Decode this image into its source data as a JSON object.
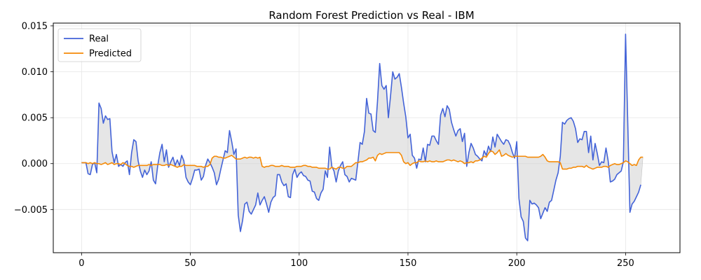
{
  "chart_data": {
    "type": "line",
    "title": "Random Forest Prediction vs Real - IBM",
    "xlabel": "",
    "ylabel": "",
    "xlim": [
      -13,
      275
    ],
    "ylim": [
      -0.0097,
      0.0153
    ],
    "xticks": [
      0,
      50,
      100,
      150,
      200,
      250
    ],
    "xtick_labels": [
      "0",
      "50",
      "100",
      "150",
      "200",
      "250"
    ],
    "yticks": [
      -0.005,
      0.0,
      0.005,
      0.01,
      0.015
    ],
    "ytick_labels": [
      "−0.005",
      "0.000",
      "0.005",
      "0.010",
      "0.015"
    ],
    "grid": true,
    "legend_position": "top-left",
    "fill_between": true,
    "colors": {
      "real": "#4363d8",
      "predicted": "#f58a07",
      "fill": "#c8c8c8"
    },
    "series": [
      {
        "name": "Real",
        "values": [
          0.0001,
          0.0001,
          0.0001,
          -0.0011,
          -0.0012,
          -0.0001,
          0.0001,
          -0.001,
          0.0066,
          0.006,
          0.0044,
          0.0052,
          0.0048,
          0.0049,
          0.0013,
          0.0001,
          0.001,
          -0.0003,
          -0.0001,
          -0.0003,
          0.0001,
          0.0003,
          -0.0012,
          0.0012,
          0.0026,
          0.0024,
          0.0003,
          -0.0008,
          -0.0015,
          -0.0007,
          -0.0012,
          -0.0008,
          0.0002,
          -0.0018,
          -0.0022,
          -0.0002,
          0.0012,
          0.0021,
          0.0002,
          0.0015,
          -0.0004,
          0.0002,
          0.0007,
          -0.0002,
          0.0004,
          -0.0002,
          0.0009,
          0.0003,
          -0.0015,
          -0.002,
          -0.0023,
          -0.0016,
          -0.0007,
          -0.0007,
          -0.0006,
          -0.0018,
          -0.0014,
          -0.0002,
          0.0005,
          0.0001,
          -0.0004,
          -0.001,
          -0.0023,
          -0.0017,
          -0.0006,
          0.0004,
          0.0014,
          0.0012,
          0.0036,
          0.0024,
          0.001,
          0.0016,
          -0.0056,
          -0.0074,
          -0.0062,
          -0.0044,
          -0.0042,
          -0.0052,
          -0.0055,
          -0.005,
          -0.0045,
          -0.0032,
          -0.0045,
          -0.004,
          -0.0036,
          -0.0044,
          -0.0053,
          -0.0042,
          -0.0037,
          -0.0035,
          -0.0012,
          -0.0012,
          -0.002,
          -0.0024,
          -0.0022,
          -0.0036,
          -0.0037,
          -0.0012,
          -0.0006,
          -0.0015,
          -0.0011,
          -0.0009,
          -0.0013,
          -0.0014,
          -0.0018,
          -0.0019,
          -0.003,
          -0.0031,
          -0.0038,
          -0.004,
          -0.0032,
          -0.0028,
          -0.0008,
          -0.0015,
          0.0018,
          -0.0003,
          -0.0008,
          -0.002,
          -0.0008,
          -0.0002,
          0.0002,
          -0.0012,
          -0.0014,
          -0.002,
          -0.0016,
          -0.0017,
          -0.0018,
          0.0002,
          0.0023,
          0.0021,
          0.0035,
          0.0071,
          0.0055,
          0.0054,
          0.0036,
          0.0034,
          0.0068,
          0.0109,
          0.0085,
          0.0081,
          0.0085,
          0.005,
          0.0074,
          0.01,
          0.0092,
          0.0094,
          0.0098,
          0.0083,
          0.0066,
          0.0051,
          0.0028,
          0.0032,
          0.0009,
          0.0006,
          -0.0005,
          0.0005,
          0.0004,
          0.0017,
          0.0002,
          0.0021,
          0.002,
          0.003,
          0.003,
          0.0025,
          0.0021,
          0.0053,
          0.006,
          0.0051,
          0.0063,
          0.0059,
          0.0045,
          0.0037,
          0.003,
          0.0036,
          0.0038,
          0.0024,
          0.0033,
          -0.0003,
          0.0012,
          0.0022,
          0.0017,
          0.001,
          0.0008,
          0.0005,
          0.0003,
          0.0014,
          0.0009,
          0.0019,
          0.0013,
          0.0029,
          0.0018,
          0.0032,
          0.0028,
          0.0024,
          0.0021,
          0.0026,
          0.0025,
          0.002,
          0.0012,
          0.0006,
          0.0024,
          -0.0038,
          -0.0058,
          -0.0063,
          -0.0081,
          -0.0084,
          -0.004,
          -0.0044,
          -0.0043,
          -0.0045,
          -0.0048,
          -0.006,
          -0.0054,
          -0.0048,
          -0.0052,
          -0.0042,
          -0.004,
          -0.0029,
          -0.0018,
          -0.001,
          0.0008,
          0.0045,
          0.0043,
          0.0047,
          0.0049,
          0.005,
          0.0046,
          0.0038,
          0.0023,
          0.0027,
          0.0026,
          0.0035,
          0.0035,
          0.0012,
          0.003,
          0.0004,
          0.0022,
          0.0011,
          -0.0002,
          0.0002,
          0.0001,
          0.0017,
          0.0003,
          -0.002,
          -0.0019,
          -0.0017,
          -0.0012,
          -0.001,
          -0.0008,
          0.0002,
          0.0141,
          0.0045,
          -0.0053,
          -0.0044,
          -0.0041,
          -0.0036,
          -0.0031,
          -0.0023
        ]
      },
      {
        "name": "Predicted",
        "values": [
          0.0001,
          0.0001,
          0.0001,
          0.0,
          0.0001,
          0.0,
          0.0001,
          0.0,
          0.0,
          -0.0001,
          0.0,
          0.0001,
          -0.0001,
          0.0,
          0.0001,
          -0.0001,
          0.0,
          0.0,
          -0.0001,
          0.0001,
          0.0,
          -0.0002,
          -0.0003,
          -0.0003,
          -0.0004,
          -0.0003,
          -0.0002,
          -0.0002,
          -0.0002,
          -0.0002,
          -0.0002,
          -0.0001,
          -0.0002,
          -0.0001,
          -0.0001,
          -0.0001,
          -0.0001,
          -0.0002,
          -0.0002,
          -0.0001,
          -0.0002,
          -0.0001,
          -0.0002,
          -0.0003,
          -0.0004,
          -0.0003,
          -0.0003,
          -0.0001,
          -0.0002,
          -0.0002,
          -0.0002,
          -0.0002,
          -0.0002,
          -0.0003,
          -0.0003,
          -0.0003,
          -0.0004,
          -0.0003,
          -0.0003,
          -0.0001,
          0.0006,
          0.0008,
          0.0008,
          0.0007,
          0.0007,
          0.0006,
          0.0006,
          0.0007,
          0.0008,
          0.0009,
          0.0007,
          0.0005,
          0.0005,
          0.0005,
          0.0006,
          0.0007,
          0.0006,
          0.0007,
          0.0007,
          0.0006,
          0.0007,
          0.0006,
          0.0007,
          -0.0003,
          -0.0004,
          -0.0003,
          -0.0003,
          -0.0002,
          -0.0002,
          -0.0003,
          -0.0003,
          -0.0003,
          -0.0002,
          -0.0003,
          -0.0003,
          -0.0003,
          -0.0004,
          -0.0004,
          -0.0004,
          -0.0003,
          -0.0003,
          -0.0003,
          -0.0002,
          -0.0002,
          -0.0003,
          -0.0003,
          -0.0004,
          -0.0004,
          -0.0004,
          -0.0005,
          -0.0005,
          -0.0005,
          -0.0005,
          -0.0006,
          -0.0006,
          -0.0004,
          -0.0005,
          -0.0006,
          -0.0004,
          -0.0004,
          -0.0005,
          -0.0005,
          -0.0003,
          -0.0003,
          -0.0003,
          -0.0001,
          0.0001,
          0.0001,
          0.0002,
          0.0002,
          0.0003,
          0.0004,
          0.0006,
          0.0006,
          0.0007,
          0.0003,
          0.0009,
          0.0011,
          0.001,
          0.0011,
          0.0012,
          0.0012,
          0.0012,
          0.0012,
          0.0012,
          0.0012,
          0.0012,
          0.0009,
          0.0002,
          0.0,
          0.0001,
          -0.0002,
          0.0,
          0.0001,
          0.0001,
          0.0003,
          0.0002,
          0.0002,
          0.0003,
          0.0002,
          0.0003,
          0.0002,
          0.0002,
          0.0003,
          0.0002,
          0.0002,
          0.0002,
          0.0003,
          0.0004,
          0.0004,
          0.0003,
          0.0004,
          0.0003,
          0.0002,
          0.0003,
          0.0002,
          0.0,
          0.0001,
          0.0001,
          0.0002,
          0.0001,
          0.0003,
          0.0003,
          0.0004,
          0.0006,
          0.0008,
          0.0007,
          0.0011,
          0.0014,
          0.0013,
          0.001,
          0.0012,
          0.0015,
          0.0008,
          0.0009,
          0.0011,
          0.0009,
          0.0008,
          0.0007,
          0.0008,
          0.0008,
          0.0008,
          0.0008,
          0.0008,
          0.0008,
          0.0007,
          0.0007,
          0.0007,
          0.0007,
          0.0007,
          0.0007,
          0.0008,
          0.001,
          0.0007,
          0.0003,
          0.0002,
          0.0002,
          0.0002,
          0.0002,
          0.0002,
          0.0001,
          -0.0006,
          -0.0006,
          -0.0006,
          -0.0005,
          -0.0005,
          -0.0004,
          -0.0004,
          -0.0003,
          -0.0003,
          -0.0003,
          -0.0004,
          -0.0002,
          -0.0004,
          -0.0005,
          -0.0006,
          -0.0005,
          -0.0004,
          -0.0004,
          -0.0004,
          -0.0003,
          -0.0003,
          -0.0004,
          -0.0002,
          -0.0001,
          0.0,
          -0.0001,
          -0.0001,
          0.0,
          0.0001,
          0.0003,
          0.0002,
          0.0,
          -0.0002,
          -0.0001,
          -0.0002,
          0.0004,
          0.0007,
          0.0007
        ]
      }
    ]
  }
}
